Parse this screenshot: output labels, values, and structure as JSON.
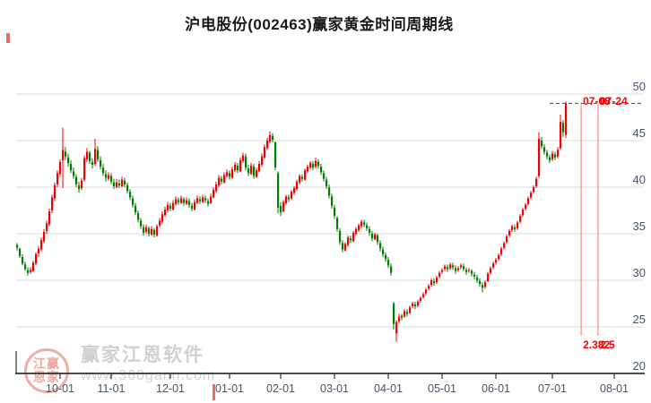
{
  "title": "沪电股份(002463)赢家黄金时间周期线",
  "watermark": {
    "brand": "赢家江恩软件",
    "url": "www.360gann.com",
    "seal_rows": [
      "江赢",
      "恩家"
    ]
  },
  "chart_data": {
    "type": "candlestick",
    "title": "沪电股份(002463)赢家黄金时间周期线",
    "ylim": [
      20,
      50
    ],
    "y_ticks": [
      50,
      45,
      40,
      35,
      30,
      25,
      20
    ],
    "grid": "horizontal",
    "colors": {
      "up": "#f00000",
      "down": "#007e00",
      "grid": "#d9d9d9",
      "axis": "#333333",
      "axis_label": "#475466",
      "annotation": "#ff0000",
      "cycle_line": "#ff8a8a",
      "target_line": "#007a00"
    },
    "x_ticks": [
      {
        "label": "10-01",
        "index": 16
      },
      {
        "label": "11-01",
        "index": 35
      },
      {
        "label": "12-01",
        "index": 57
      },
      {
        "label": "01-01",
        "index": 79
      },
      {
        "label": "02-01",
        "index": 98
      },
      {
        "label": "03-01",
        "index": 118
      },
      {
        "label": "04-01",
        "index": 138
      },
      {
        "label": "05-01",
        "index": 158
      },
      {
        "label": "06-01",
        "index": 178
      },
      {
        "label": "07-01",
        "index": 199
      },
      {
        "label": "08-01",
        "index": 222
      }
    ],
    "cycle_lines": [
      {
        "date": "07-08",
        "ratio": "2.382",
        "index": 209.7
      },
      {
        "date": "07-24",
        "ratio": "2.5",
        "index": 216
      }
    ],
    "target_line": {
      "value": 49.0,
      "from_index": 198
    },
    "candles": [
      [
        33.8,
        34.0,
        33.2,
        33.5
      ],
      [
        33.4,
        33.5,
        32.4,
        32.6
      ],
      [
        32.5,
        32.8,
        31.6,
        31.8
      ],
      [
        31.7,
        32.0,
        31.0,
        31.2
      ],
      [
        31.1,
        31.4,
        30.5,
        30.8
      ],
      [
        30.9,
        31.4,
        30.7,
        31.1
      ],
      [
        31.0,
        32.1,
        30.9,
        31.9
      ],
      [
        31.8,
        33.0,
        31.6,
        32.8
      ],
      [
        32.9,
        33.7,
        32.5,
        33.4
      ],
      [
        33.3,
        34.6,
        33.1,
        34.3
      ],
      [
        34.2,
        35.5,
        34.0,
        35.2
      ],
      [
        35.3,
        36.4,
        35.0,
        36.1
      ],
      [
        36.0,
        37.7,
        35.8,
        37.4
      ],
      [
        37.5,
        39.2,
        37.2,
        38.9
      ],
      [
        38.8,
        40.5,
        38.5,
        40.2
      ],
      [
        40.3,
        41.8,
        40.0,
        41.5
      ],
      [
        41.4,
        43.0,
        41.1,
        42.7
      ],
      [
        42.9,
        46.4,
        39.9,
        44.0
      ],
      [
        43.8,
        44.3,
        42.9,
        43.3
      ],
      [
        43.2,
        43.6,
        42.2,
        42.6
      ],
      [
        42.5,
        42.9,
        41.5,
        41.8
      ],
      [
        41.7,
        42.1,
        40.9,
        41.2
      ],
      [
        41.1,
        41.4,
        40.0,
        40.3
      ],
      [
        40.2,
        40.6,
        39.4,
        39.8
      ],
      [
        39.9,
        41.0,
        39.7,
        40.7
      ],
      [
        40.8,
        43.4,
        40.6,
        43.1
      ],
      [
        43.0,
        44.2,
        42.7,
        43.8
      ],
      [
        43.7,
        43.9,
        42.5,
        42.8
      ],
      [
        42.7,
        43.1,
        42.0,
        42.4
      ],
      [
        42.5,
        45.2,
        42.3,
        44.1
      ],
      [
        44.0,
        44.4,
        42.7,
        43.0
      ],
      [
        42.9,
        43.3,
        41.9,
        42.2
      ],
      [
        42.1,
        42.5,
        41.2,
        41.5
      ],
      [
        41.4,
        41.8,
        40.6,
        41.0
      ],
      [
        40.9,
        41.6,
        40.7,
        41.3
      ],
      [
        41.2,
        41.5,
        40.3,
        40.6
      ],
      [
        40.5,
        40.9,
        39.8,
        40.1
      ],
      [
        40.0,
        40.9,
        39.9,
        40.5
      ],
      [
        40.4,
        40.8,
        39.9,
        40.2
      ],
      [
        40.1,
        41.1,
        40.0,
        40.8
      ],
      [
        40.7,
        41.0,
        40.0,
        40.3
      ],
      [
        40.2,
        40.5,
        39.3,
        39.6
      ],
      [
        39.5,
        39.8,
        38.6,
        38.9
      ],
      [
        38.8,
        39.1,
        37.8,
        38.1
      ],
      [
        38.0,
        38.3,
        37.0,
        37.3
      ],
      [
        37.2,
        37.5,
        36.2,
        36.5
      ],
      [
        36.4,
        36.7,
        35.5,
        35.8
      ],
      [
        35.7,
        36.0,
        34.8,
        35.1
      ],
      [
        35.2,
        36.0,
        35.0,
        35.7
      ],
      [
        35.6,
        35.8,
        34.7,
        35.0
      ],
      [
        34.9,
        35.8,
        34.8,
        35.5
      ],
      [
        35.4,
        35.6,
        34.6,
        34.9
      ],
      [
        34.8,
        36.0,
        34.7,
        35.8
      ],
      [
        35.9,
        36.7,
        35.7,
        36.4
      ],
      [
        36.3,
        37.4,
        36.1,
        37.1
      ],
      [
        37.0,
        37.9,
        36.8,
        37.6
      ],
      [
        37.5,
        38.4,
        37.3,
        38.1
      ],
      [
        38.0,
        38.3,
        37.4,
        37.7
      ],
      [
        37.6,
        38.6,
        37.5,
        38.3
      ],
      [
        38.2,
        39.0,
        38.0,
        38.7
      ],
      [
        38.6,
        38.9,
        38.1,
        38.4
      ],
      [
        38.3,
        39.1,
        38.2,
        38.8
      ],
      [
        38.7,
        38.9,
        38.0,
        38.3
      ],
      [
        38.2,
        38.9,
        38.1,
        38.6
      ],
      [
        38.5,
        38.8,
        37.8,
        38.1
      ],
      [
        38.0,
        38.3,
        37.4,
        37.7
      ],
      [
        37.6,
        38.7,
        37.5,
        38.4
      ],
      [
        38.3,
        39.1,
        38.2,
        38.8
      ],
      [
        38.7,
        39.0,
        38.2,
        38.5
      ],
      [
        38.4,
        39.2,
        38.3,
        38.9
      ],
      [
        38.8,
        39.1,
        38.3,
        38.6
      ],
      [
        38.5,
        38.8,
        37.9,
        38.2
      ],
      [
        38.3,
        39.3,
        38.2,
        39.0
      ],
      [
        38.9,
        40.0,
        38.8,
        39.7
      ],
      [
        39.6,
        40.6,
        39.4,
        40.3
      ],
      [
        40.2,
        41.3,
        40.0,
        41.0
      ],
      [
        40.9,
        41.2,
        40.3,
        40.6
      ],
      [
        40.5,
        41.6,
        40.4,
        41.3
      ],
      [
        41.2,
        41.9,
        41.0,
        41.6
      ],
      [
        41.5,
        41.8,
        40.8,
        41.1
      ],
      [
        41.0,
        42.2,
        40.9,
        41.9
      ],
      [
        41.8,
        42.7,
        41.6,
        42.4
      ],
      [
        42.3,
        42.6,
        41.5,
        41.8
      ],
      [
        41.7,
        43.2,
        41.6,
        42.9
      ],
      [
        42.8,
        43.7,
        42.6,
        43.4
      ],
      [
        43.3,
        43.6,
        41.8,
        42.1
      ],
      [
        42.0,
        42.4,
        41.2,
        41.5
      ],
      [
        41.4,
        42.6,
        41.3,
        42.3
      ],
      [
        42.2,
        42.5,
        40.9,
        41.2
      ],
      [
        41.1,
        42.1,
        41.0,
        41.8
      ],
      [
        41.7,
        42.8,
        41.6,
        42.5
      ],
      [
        42.4,
        43.6,
        42.2,
        43.3
      ],
      [
        43.2,
        44.6,
        43.0,
        44.3
      ],
      [
        44.2,
        45.3,
        44.0,
        45.0
      ],
      [
        44.9,
        46.0,
        44.7,
        45.6
      ],
      [
        45.5,
        45.8,
        44.8,
        45.1
      ],
      [
        44.8,
        44.9,
        41.8,
        42.1
      ],
      [
        41.5,
        41.7,
        37.2,
        37.8
      ],
      [
        38.0,
        38.4,
        36.9,
        37.3
      ],
      [
        37.4,
        38.6,
        37.3,
        38.4
      ],
      [
        38.3,
        39.2,
        38.1,
        39.0
      ],
      [
        38.9,
        39.2,
        38.4,
        38.7
      ],
      [
        38.8,
        39.7,
        38.6,
        39.5
      ],
      [
        39.4,
        40.1,
        39.2,
        39.9
      ],
      [
        39.8,
        40.8,
        39.6,
        40.6
      ],
      [
        40.5,
        41.4,
        40.3,
        41.2
      ],
      [
        41.1,
        41.4,
        40.6,
        40.9
      ],
      [
        40.8,
        42.0,
        40.7,
        41.8
      ],
      [
        41.7,
        42.4,
        41.5,
        42.2
      ],
      [
        42.1,
        42.8,
        41.9,
        42.6
      ],
      [
        42.5,
        42.8,
        41.8,
        42.1
      ],
      [
        42.2,
        43.2,
        42.0,
        42.8
      ],
      [
        42.7,
        43.0,
        42.0,
        42.3
      ],
      [
        42.2,
        42.5,
        41.3,
        41.6
      ],
      [
        41.5,
        41.8,
        40.6,
        40.9
      ],
      [
        40.8,
        41.1,
        39.8,
        40.1
      ],
      [
        40.0,
        40.3,
        38.8,
        39.1
      ],
      [
        39.0,
        39.3,
        37.7,
        38.0
      ],
      [
        37.8,
        38.1,
        36.6,
        36.9
      ],
      [
        36.7,
        36.9,
        35.2,
        35.5
      ],
      [
        35.3,
        35.6,
        33.8,
        34.1
      ],
      [
        34.0,
        34.3,
        33.0,
        33.3
      ],
      [
        33.2,
        34.1,
        33.1,
        33.9
      ],
      [
        33.8,
        34.8,
        33.6,
        34.6
      ],
      [
        34.5,
        34.8,
        34.0,
        34.3
      ],
      [
        34.2,
        35.3,
        34.1,
        35.1
      ],
      [
        35.0,
        35.7,
        34.8,
        35.5
      ],
      [
        35.4,
        36.1,
        35.2,
        35.9
      ],
      [
        35.8,
        36.5,
        35.6,
        36.3
      ],
      [
        36.2,
        36.5,
        35.7,
        36.0
      ],
      [
        35.9,
        36.2,
        35.3,
        35.6
      ],
      [
        35.5,
        35.8,
        34.8,
        35.1
      ],
      [
        35.0,
        35.3,
        34.2,
        34.5
      ],
      [
        34.4,
        35.1,
        34.3,
        34.9
      ],
      [
        34.8,
        35.0,
        33.8,
        34.1
      ],
      [
        34.0,
        34.3,
        33.1,
        33.4
      ],
      [
        33.3,
        33.6,
        32.5,
        32.8
      ],
      [
        32.7,
        33.0,
        32.0,
        32.3
      ],
      [
        32.2,
        32.5,
        31.3,
        31.6
      ],
      [
        31.5,
        31.8,
        30.5,
        30.8
      ],
      [
        27.5,
        27.7,
        24.7,
        25.3
      ],
      [
        24.3,
        25.7,
        23.4,
        25.5
      ],
      [
        25.6,
        26.4,
        25.4,
        26.1
      ],
      [
        26.2,
        26.4,
        25.7,
        26.0
      ],
      [
        26.1,
        26.9,
        26.0,
        26.7
      ],
      [
        26.6,
        26.9,
        26.1,
        26.4
      ],
      [
        26.5,
        27.3,
        26.4,
        27.1
      ],
      [
        27.2,
        27.7,
        27.0,
        27.5
      ],
      [
        27.4,
        27.7,
        26.9,
        27.2
      ],
      [
        27.3,
        27.9,
        27.1,
        27.7
      ],
      [
        27.8,
        28.3,
        27.6,
        28.1
      ],
      [
        28.2,
        28.7,
        28.0,
        28.5
      ],
      [
        28.6,
        29.2,
        28.4,
        29.0
      ],
      [
        29.1,
        29.6,
        28.9,
        29.4
      ],
      [
        29.5,
        30.2,
        29.3,
        30.0
      ],
      [
        29.9,
        30.2,
        29.4,
        29.7
      ],
      [
        29.8,
        30.5,
        29.6,
        30.3
      ],
      [
        30.4,
        31.0,
        30.2,
        30.8
      ],
      [
        30.9,
        31.3,
        30.7,
        31.1
      ],
      [
        31.2,
        31.7,
        31.0,
        31.5
      ],
      [
        31.4,
        31.7,
        30.9,
        31.2
      ],
      [
        31.3,
        31.9,
        31.1,
        31.7
      ],
      [
        31.6,
        31.9,
        31.1,
        31.4
      ],
      [
        31.3,
        31.6,
        30.7,
        31.0
      ],
      [
        31.1,
        31.5,
        30.9,
        31.3
      ],
      [
        31.4,
        31.8,
        31.2,
        31.6
      ],
      [
        31.5,
        31.8,
        31.0,
        31.2
      ],
      [
        31.1,
        31.4,
        30.6,
        30.9
      ],
      [
        31.0,
        31.3,
        30.8,
        31.1
      ],
      [
        31.0,
        31.2,
        30.4,
        30.7
      ],
      [
        30.6,
        30.9,
        30.1,
        30.4
      ],
      [
        30.3,
        30.6,
        29.7,
        30.0
      ],
      [
        29.9,
        30.2,
        29.3,
        29.6
      ],
      [
        29.5,
        29.8,
        28.7,
        29.2
      ],
      [
        29.3,
        30.0,
        29.1,
        29.8
      ],
      [
        29.9,
        30.9,
        29.8,
        30.7
      ],
      [
        30.8,
        31.5,
        30.6,
        31.3
      ],
      [
        31.4,
        32.0,
        31.2,
        31.8
      ],
      [
        31.9,
        32.4,
        31.7,
        32.2
      ],
      [
        32.3,
        32.9,
        32.1,
        32.7
      ],
      [
        32.8,
        33.6,
        32.6,
        33.4
      ],
      [
        33.5,
        34.2,
        33.3,
        34.0
      ],
      [
        34.1,
        34.9,
        33.9,
        34.7
      ],
      [
        34.8,
        35.5,
        34.6,
        35.3
      ],
      [
        35.4,
        36.0,
        35.2,
        35.8
      ],
      [
        35.7,
        36.0,
        35.2,
        35.5
      ],
      [
        35.6,
        36.4,
        35.4,
        36.2
      ],
      [
        36.3,
        37.1,
        36.1,
        36.9
      ],
      [
        37.0,
        37.8,
        36.8,
        37.6
      ],
      [
        37.7,
        38.3,
        37.5,
        38.1
      ],
      [
        38.2,
        39.0,
        38.0,
        38.8
      ],
      [
        38.9,
        39.6,
        38.7,
        39.4
      ],
      [
        39.5,
        40.2,
        39.3,
        40.0
      ],
      [
        40.1,
        41.1,
        39.9,
        40.9
      ],
      [
        41.2,
        45.9,
        41.0,
        45.2
      ],
      [
        45.0,
        45.4,
        44.1,
        44.4
      ],
      [
        44.3,
        44.6,
        43.5,
        43.8
      ],
      [
        43.7,
        44.0,
        43.0,
        43.3
      ],
      [
        43.2,
        43.5,
        42.6,
        42.9
      ],
      [
        43.0,
        43.9,
        42.8,
        43.6
      ],
      [
        43.5,
        43.8,
        42.9,
        43.2
      ],
      [
        43.3,
        44.3,
        43.1,
        44.0
      ],
      [
        44.2,
        47.8,
        44.0,
        47.0
      ],
      [
        46.9,
        47.2,
        45.4,
        45.9
      ],
      [
        45.6,
        49.2,
        45.3,
        49.0
      ]
    ]
  }
}
